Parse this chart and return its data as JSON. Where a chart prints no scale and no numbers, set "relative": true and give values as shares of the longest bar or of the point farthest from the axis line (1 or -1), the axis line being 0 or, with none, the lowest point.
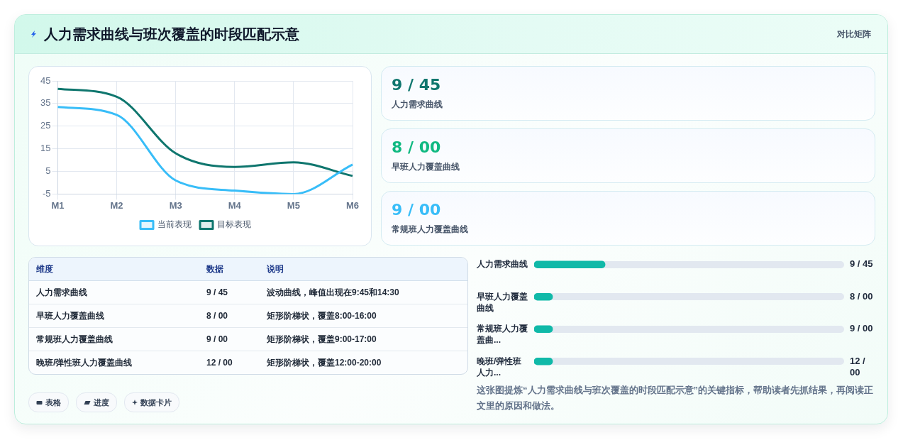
{
  "chart_data": [
    {
      "type": "line",
      "title": "人力需求曲线与班次覆盖的时段匹配示意",
      "annotations": [
        "对比矩阵"
      ],
      "categories": [
        "M1",
        "M2",
        "M3",
        "M4",
        "M5",
        "M6"
      ],
      "series": [
        {
          "name": "当前表现",
          "color": "#38bdf8",
          "values": [
            33.5,
            30,
            1,
            -3.5,
            -5,
            8
          ]
        },
        {
          "name": "目标表现",
          "color": "#0f766e",
          "values": [
            41.5,
            38,
            13,
            7,
            9,
            3
          ]
        }
      ],
      "ylim": [
        -5,
        45
      ],
      "yticks": [
        -5,
        5,
        15,
        25,
        35,
        45
      ],
      "grid": true,
      "legend": "bottom",
      "marker": "none"
    },
    {
      "type": "other",
      "categories": [
        "人力需求曲线",
        "早班人力覆盖曲线",
        "常规班人力覆盖曲线"
      ],
      "value_labels": [
        "9 / 45",
        "8 / 00",
        "9 / 00"
      ]
    },
    {
      "type": "other",
      "categories": [
        "维度",
        "数据",
        "说明"
      ],
      "cell_labels": [
        [
          "人力需求曲线",
          "9 / 45",
          "波动曲线，峰值出现在9:45和14:30"
        ],
        [
          "早班人力覆盖曲线",
          "8 / 00",
          "矩形阶梯状，覆盖8:00-16:00"
        ],
        [
          "常规班人力覆盖曲线",
          "9 / 00",
          "矩形阶梯状，覆盖9:00-17:00"
        ],
        [
          "晚班/弹性班人力覆盖曲线",
          "12 / 00",
          "矩形阶梯状，覆盖12:00-20:00"
        ]
      ],
      "annotations": [
        "表格",
        "进度",
        "数据卡片"
      ]
    },
    {
      "type": "bar",
      "orientation": "horizontal",
      "relative": true,
      "categories": [
        "人力需求曲线",
        "早班人力覆盖曲线",
        "常规班人力覆盖曲...",
        "晚班/弹性班人力..."
      ],
      "y2_categories": [
        "9 / 45",
        "8 / 00",
        "9 / 00",
        "12 / 00"
      ],
      "values": [
        1,
        0.26,
        0.26,
        0.26
      ],
      "color": "#10b9a8",
      "annotations": [
        "这张图提炼“人力需求曲线与班次覆盖的时段匹配示意”的关键指标，帮助读者先抓结果，再阅读正文里的原因和做法。"
      ]
    }
  ]
}
